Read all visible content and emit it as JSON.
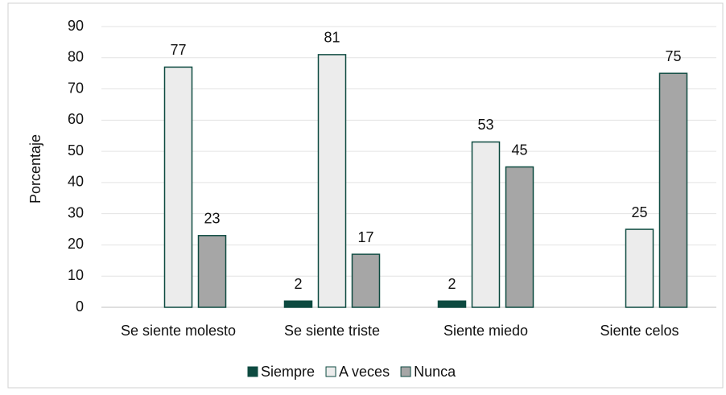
{
  "chart_data": {
    "type": "bar",
    "y_label": "Porcentaje",
    "categories": [
      "Se siente molesto",
      "Se siente triste",
      "Siente miedo",
      "Siente celos"
    ],
    "series": [
      {
        "name": "Siempre",
        "color": "#0d4a40",
        "values": [
          null,
          2,
          2,
          null
        ]
      },
      {
        "name": "A veces",
        "color": "#ececec",
        "values": [
          77,
          81,
          53,
          25
        ]
      },
      {
        "name": "Nunca",
        "color": "#a6a6a6",
        "values": [
          23,
          17,
          45,
          75
        ]
      }
    ],
    "ylim": [
      0,
      90
    ],
    "yticks": [
      0,
      10,
      20,
      30,
      40,
      50,
      60,
      70,
      80,
      90
    ],
    "grid": true,
    "legend": "bottom"
  }
}
